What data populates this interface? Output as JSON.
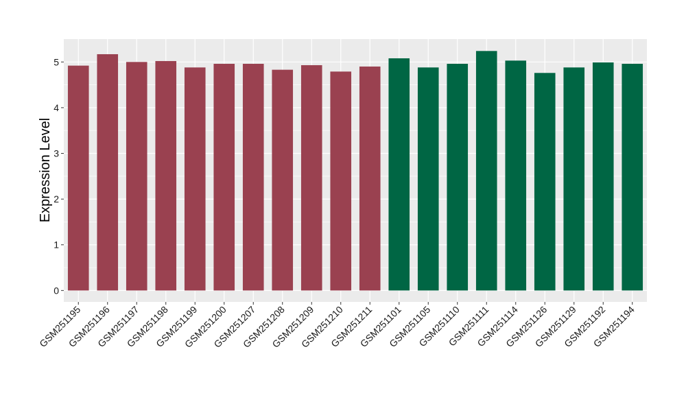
{
  "chart_data": {
    "type": "bar",
    "title": "",
    "xlabel": "",
    "ylabel": "Expression Level",
    "ylim": [
      -0.25,
      5.5
    ],
    "yticks": [
      0,
      1,
      2,
      3,
      4,
      5
    ],
    "grid": true,
    "legend": "none",
    "categories": [
      "GSM251195",
      "GSM251196",
      "GSM251197",
      "GSM251198",
      "GSM251199",
      "GSM251200",
      "GSM251207",
      "GSM251208",
      "GSM251209",
      "GSM251210",
      "GSM251211",
      "GSM251101",
      "GSM251105",
      "GSM251110",
      "GSM251111",
      "GSM251114",
      "GSM251126",
      "GSM251129",
      "GSM251192",
      "GSM251194"
    ],
    "values": [
      4.92,
      5.17,
      5.0,
      5.02,
      4.88,
      4.96,
      4.96,
      4.83,
      4.93,
      4.79,
      4.9,
      5.08,
      4.88,
      4.96,
      5.24,
      5.03,
      4.76,
      4.88,
      4.99,
      4.96
    ],
    "groups": [
      0,
      0,
      0,
      0,
      0,
      0,
      0,
      0,
      0,
      0,
      0,
      1,
      1,
      1,
      1,
      1,
      1,
      1,
      1,
      1
    ],
    "group_colors": [
      "#9a4150",
      "#006644"
    ],
    "panel_color": "#ebebeb",
    "grid_color": "#ffffff"
  }
}
